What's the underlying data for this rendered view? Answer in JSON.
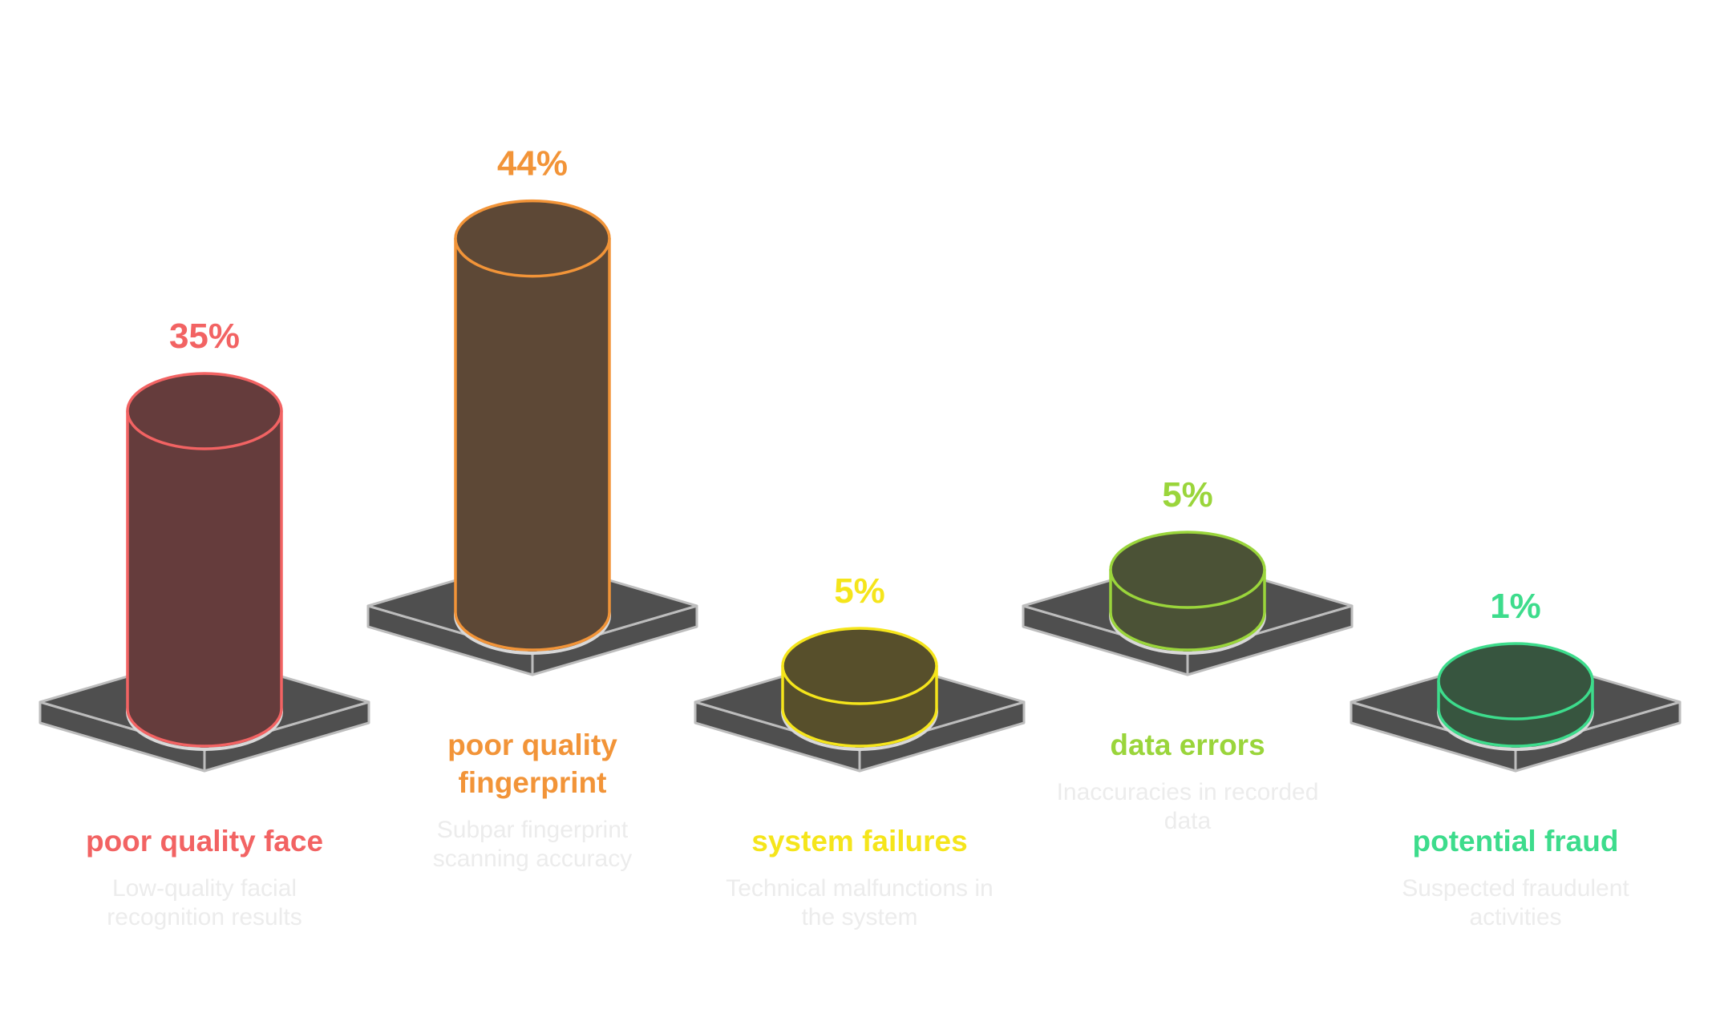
{
  "chart_data": {
    "type": "bar",
    "style": "3d-cylinder-on-platform",
    "categories": [
      "poor quality face",
      "poor quality fingerprint",
      "system failures",
      "data errors",
      "potential fraud"
    ],
    "values": [
      35,
      44,
      5,
      5,
      1
    ],
    "value_labels": [
      "35%",
      "44%",
      "5%",
      "5%",
      "1%"
    ],
    "descriptions": [
      "Low-quality facial recognition results",
      "Subpar fingerprint scanning accuracy",
      "Technical malfunctions in the system",
      "Inaccuracies in recorded data",
      "Suspected fraudulent activities"
    ],
    "colors": [
      "#f26363",
      "#f29438",
      "#f5e51b",
      "#9ad53b",
      "#3ddc8c"
    ],
    "fill_colors": [
      "#653c3c",
      "#5d4836",
      "#574f2b",
      "#4b5236",
      "#37553f"
    ],
    "platform_color": "#4f4f4f",
    "platform_edge_color": "#bdbdbd",
    "title": "",
    "xlabel": "",
    "ylabel": "",
    "legend": "none",
    "grid": false
  }
}
